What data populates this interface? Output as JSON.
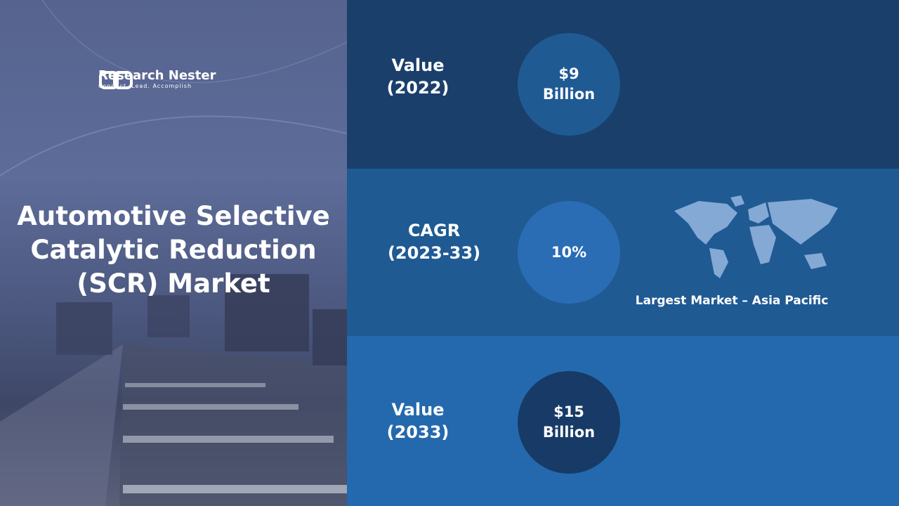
{
  "logo": {
    "name": "Research Nester",
    "tagline": "Connect. Lead. Accomplish"
  },
  "title": "Automotive Selective Catalytic Reduction (SCR) Market",
  "stats": [
    {
      "label": "Value (2022)",
      "value": "$9 Billion"
    },
    {
      "label": "CAGR (2023-33)",
      "value": "10%"
    },
    {
      "label": "Value (2033)",
      "value": "$15 Billion"
    }
  ],
  "largest_market": "Largest Market – Asia Pacific"
}
